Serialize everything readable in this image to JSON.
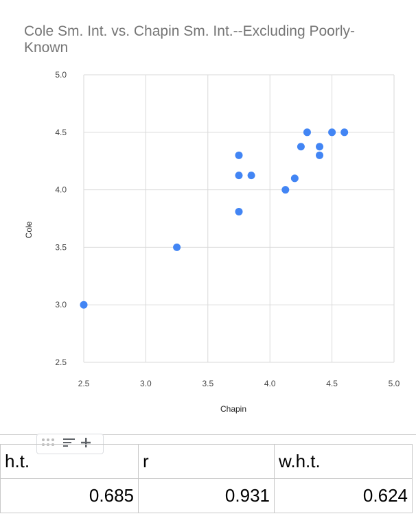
{
  "chart_data": {
    "type": "scatter",
    "title": "Cole Sm. Int. vs. Chapin Sm. Int.--Excluding Poorly-Known",
    "xlabel": "Chapin",
    "ylabel": "Cole",
    "xlim": [
      2.5,
      5.0
    ],
    "ylim": [
      2.5,
      5.0
    ],
    "xticks": [
      "2.5",
      "3.0",
      "3.5",
      "4.0",
      "4.5",
      "5.0"
    ],
    "yticks": [
      "2.5",
      "3.0",
      "3.5",
      "4.0",
      "4.5",
      "5.0"
    ],
    "grid": true,
    "legend": "none",
    "point_color": "#4285f4",
    "points": [
      {
        "x": 2.5,
        "y": 3.0
      },
      {
        "x": 3.25,
        "y": 3.5
      },
      {
        "x": 3.75,
        "y": 3.81
      },
      {
        "x": 3.75,
        "y": 4.125
      },
      {
        "x": 3.75,
        "y": 4.3
      },
      {
        "x": 3.85,
        "y": 4.125
      },
      {
        "x": 4.125,
        "y": 4.0
      },
      {
        "x": 4.2,
        "y": 4.1
      },
      {
        "x": 4.25,
        "y": 4.375
      },
      {
        "x": 4.3,
        "y": 4.5
      },
      {
        "x": 4.4,
        "y": 4.375
      },
      {
        "x": 4.4,
        "y": 4.3
      },
      {
        "x": 4.5,
        "y": 4.5
      },
      {
        "x": 4.6,
        "y": 4.5
      }
    ]
  },
  "toolbar": {
    "icons": [
      "drag-handle-icon",
      "sort-lines-icon",
      "plus-icon"
    ]
  },
  "table": {
    "headers": [
      "h.t.",
      "r",
      "w.h.t."
    ],
    "values": [
      "0.685",
      "0.931",
      "0.624"
    ]
  }
}
